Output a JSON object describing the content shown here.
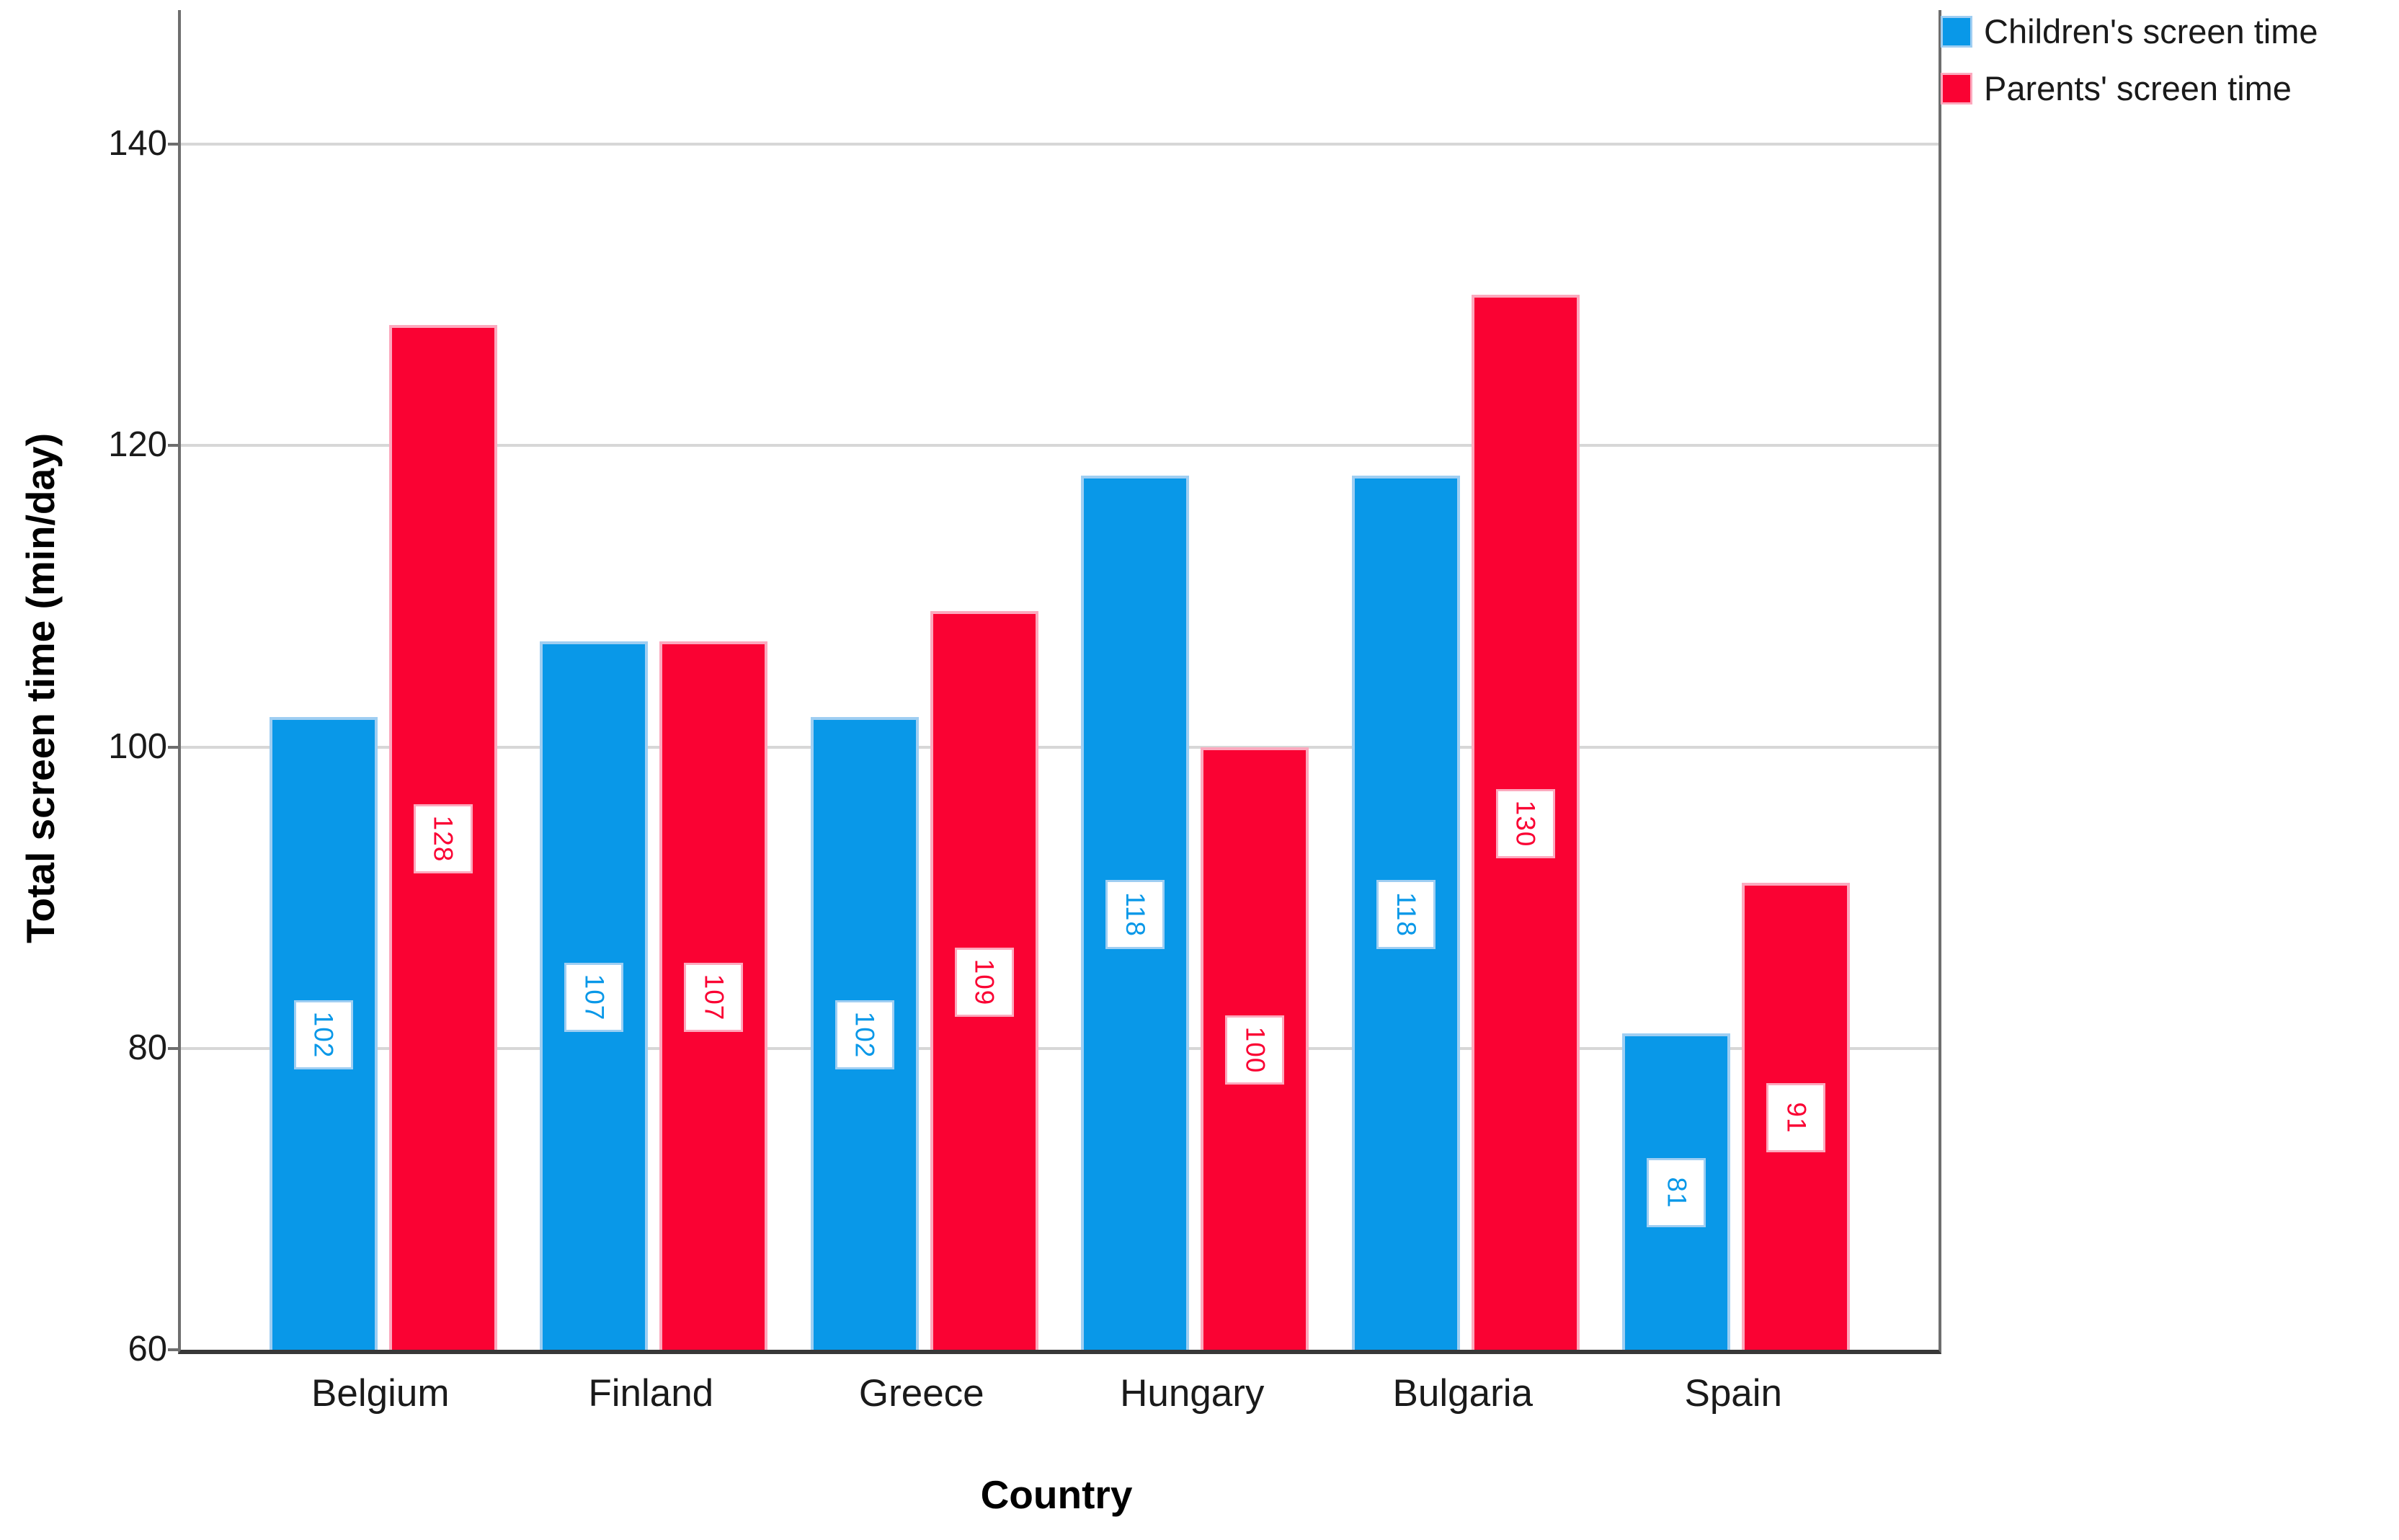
{
  "chart_data": {
    "type": "bar",
    "title": "",
    "xlabel": "Country",
    "ylabel": "Total screen time (min/day)",
    "categories": [
      "Belgium",
      "Finland",
      "Greece",
      "Hungary",
      "Bulgaria",
      "Spain"
    ],
    "series": [
      {
        "name": "Children's screen time",
        "color": "#0998e8",
        "border_color": "#9fcef2",
        "values": [
          102,
          107,
          102,
          118,
          118,
          81
        ]
      },
      {
        "name": "Parents' screen time",
        "color": "#fa0233",
        "border_color": "#fca9be",
        "values": [
          128,
          107,
          109,
          100,
          130,
          91
        ]
      }
    ],
    "bar_value_labels": [
      [
        "102",
        "107",
        "102",
        "118",
        "118",
        "81"
      ],
      [
        "128",
        "107",
        "109",
        "100",
        "130",
        "91"
      ]
    ],
    "yticks": [
      "60",
      "80",
      "100",
      "120",
      "140"
    ],
    "ylim": [
      60,
      148.9
    ],
    "grid": true,
    "legend_position": "top-right",
    "gridline_color": "#d7d7d7",
    "axis_color": "#6e6e6e",
    "baseline_color": "#383838"
  }
}
